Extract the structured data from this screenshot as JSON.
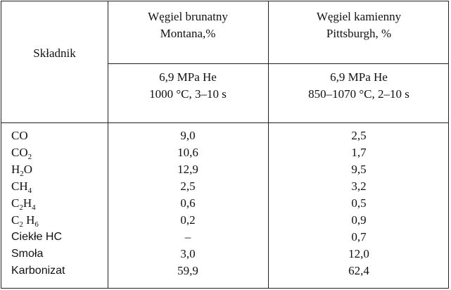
{
  "table": {
    "col0_header": "Składnik",
    "col1_header_line1": "Węgiel brunatny",
    "col1_header_line2": "Montana,%",
    "col2_header_line1": "Węgiel kamienny",
    "col2_header_line2": "Pittsburgh, %",
    "col1_cond_line1": "6,9 MPa He",
    "col1_cond_line2": "1000 °C, 3–10 s",
    "col2_cond_line1": "6,9 MPa He",
    "col2_cond_line2": "850–1070 °C, 2–10 s",
    "rows": [
      {
        "name": "CO",
        "montana": "9,0",
        "pittsburgh": "2,5"
      },
      {
        "name_main": "CO",
        "name_sub": "2",
        "montana": "10,6",
        "pittsburgh": "1,7"
      },
      {
        "name_a": "H",
        "name_sub": "2",
        "name_b": "O",
        "montana": "12,9",
        "pittsburgh": "9,5"
      },
      {
        "name_main": "CH",
        "name_sub": "4",
        "montana": "2,5",
        "pittsburgh": "3,2"
      },
      {
        "name_a": "C",
        "name_sub1": "2",
        "name_b": "H",
        "name_sub2": "4",
        "montana": "0,6",
        "pittsburgh": "0,5"
      },
      {
        "name_a": "C",
        "name_sub1": "2",
        "name_b": " H",
        "name_sub2": "6",
        "montana": "0,2",
        "pittsburgh": "0,9"
      },
      {
        "name": "Ciekłe HC",
        "montana": "–",
        "pittsburgh": "0,7"
      },
      {
        "name": "Smoła",
        "montana": "3,0",
        "pittsburgh": "12,0"
      },
      {
        "name": "Karbonizat",
        "montana": "59,9",
        "pittsburgh": "62,4"
      }
    ]
  }
}
